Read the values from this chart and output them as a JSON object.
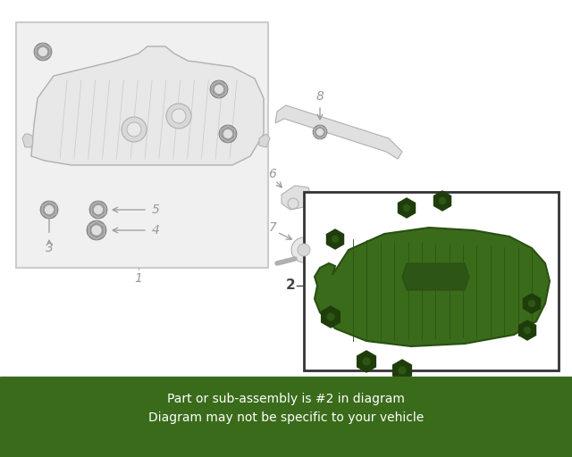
{
  "background_color": "#ffffff",
  "left_box_bg": "#f0f0f0",
  "left_box_border": "#cccccc",
  "right_box_bg": "#ffffff",
  "right_box_border": "#333333",
  "part_line_color": "#b0b0b0",
  "part_fill_color": "#e8e8e8",
  "green_fill": "#3a6b1a",
  "green_edge": "#2a4f12",
  "green_rib": "#2d5515",
  "bolt_gray_outer": "#999999",
  "bolt_gray_inner": "#ffffff",
  "bolt_green_outer": "#1e3d0a",
  "bolt_green_inner": "#2d5515",
  "label_color": "#999999",
  "label2_color": "#444444",
  "footer_bg": "#3a6b1a",
  "footer_text": "#ffffff",
  "footer_line1": "Part or sub-assembly is #2 in diagram",
  "footer_line2": "Diagram may not be specific to your vehicle"
}
